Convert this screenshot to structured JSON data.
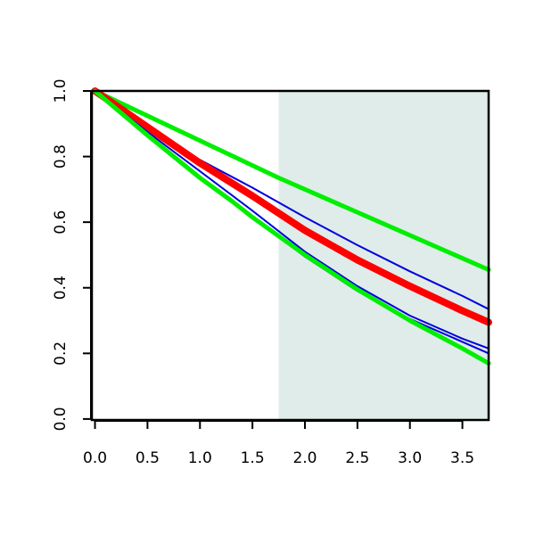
{
  "chart_data": {
    "type": "line",
    "title": "",
    "xlabel": "",
    "ylabel": "",
    "xlim": [
      -0.03,
      3.75
    ],
    "ylim": [
      -0.003,
      1.0
    ],
    "x_ticks": [
      0.0,
      0.5,
      1.0,
      1.5,
      2.0,
      2.5,
      3.0,
      3.5
    ],
    "x_tick_labels": [
      "0.0",
      "0.5",
      "1.0",
      "1.5",
      "2.0",
      "2.5",
      "3.0",
      "3.5"
    ],
    "y_ticks": [
      0.0,
      0.2,
      0.4,
      0.6,
      0.8,
      1.0
    ],
    "y_tick_labels": [
      "0.0",
      "0.2",
      "0.4",
      "0.6",
      "0.8",
      "1.0"
    ],
    "grid": false,
    "legend": "none",
    "shaded_region": {
      "x_start": 1.75,
      "x_end": 3.75,
      "color": "#dfecea"
    },
    "series": [
      {
        "role": "upper-bound",
        "color": "#00ee00",
        "weight": "thick",
        "x": [
          0,
          1.75,
          3.75
        ],
        "y": [
          1.0,
          0.735,
          0.455
        ]
      },
      {
        "role": "upper-line",
        "color": "#0000dd",
        "weight": "thin",
        "x": [
          0,
          0.5,
          1.0,
          1.5,
          2.0,
          2.5,
          3.0,
          3.5,
          3.75
        ],
        "y": [
          1.0,
          0.89,
          0.79,
          0.705,
          0.615,
          0.53,
          0.45,
          0.375,
          0.335
        ]
      },
      {
        "role": "mean",
        "color": "#ff0000",
        "weight": "very thick",
        "x": [
          0,
          0.5,
          1.0,
          1.5,
          2.0,
          2.5,
          3.0,
          3.5,
          3.75
        ],
        "y": [
          1.0,
          0.89,
          0.78,
          0.68,
          0.575,
          0.485,
          0.405,
          0.33,
          0.295
        ]
      },
      {
        "role": "lower-line-1",
        "color": "#0000dd",
        "weight": "thin",
        "x": [
          0,
          0.5,
          1.0,
          1.5,
          2.0,
          2.5,
          3.0,
          3.5,
          3.75
        ],
        "y": [
          1.0,
          0.875,
          0.755,
          0.635,
          0.51,
          0.405,
          0.315,
          0.245,
          0.215
        ]
      },
      {
        "role": "lower-line-2",
        "color": "#0000dd",
        "weight": "thin",
        "x": [
          0,
          0.5,
          1.0,
          1.5,
          2.0,
          2.5,
          3.0,
          3.5,
          3.75
        ],
        "y": [
          1.0,
          0.865,
          0.735,
          0.615,
          0.495,
          0.39,
          0.305,
          0.235,
          0.2
        ]
      },
      {
        "role": "lower-bound",
        "color": "#00ee00",
        "weight": "thick",
        "x": [
          0,
          0.5,
          1.0,
          1.3,
          1.5,
          2.0,
          2.5,
          3.0,
          3.5,
          3.75
        ],
        "y": [
          1.0,
          0.865,
          0.735,
          0.665,
          0.615,
          0.5,
          0.395,
          0.3,
          0.215,
          0.17
        ]
      }
    ]
  }
}
